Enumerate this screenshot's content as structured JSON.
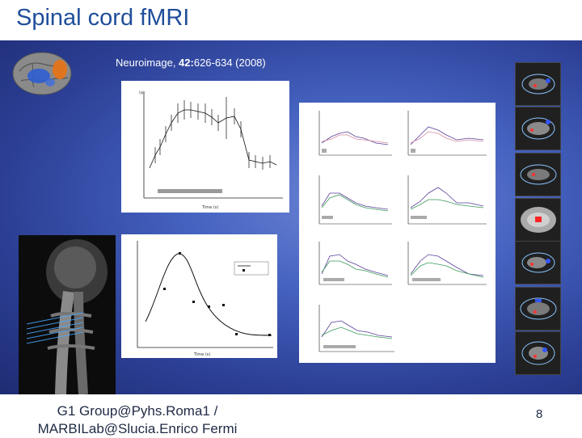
{
  "slide": {
    "title": "Spinal cord fMRI",
    "citation": {
      "journal": "Neuroimage, ",
      "volume": "42:",
      "pages": "626-634 (2008)"
    },
    "footer": "G1 Group@Pyhs.Roma1 / MARBILab@Slucia.Enrico Fermi",
    "page_number": "8"
  },
  "colors": {
    "title": "#1f4e9a",
    "panel_dark": "#1e2c73",
    "panel_light": "#6e86d6"
  },
  "plots": {
    "top_left": {
      "label": "(a)",
      "bottom_label": "Time (s)"
    },
    "bottom_left": {
      "bottom_label": "Time (s)"
    }
  },
  "images": {
    "brain_icon": "brain-surface-render",
    "spine_mri": "sagittal-cervical-spine-mri",
    "axial_thumbnails": 7
  }
}
